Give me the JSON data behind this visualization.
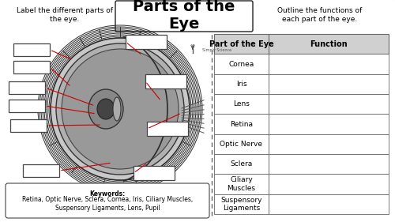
{
  "title": "Parts of the\nEye",
  "left_instruction": "Label the different parts of\nthe eye.",
  "right_instruction": "Outline the functions of\neach part of the eye.",
  "table_headers": [
    "Part of the Eye",
    "Function"
  ],
  "table_rows": [
    "Cornea",
    "Iris",
    "Lens",
    "Retina",
    "Optic Nerve",
    "Sclera",
    "Ciliary\nMuscles",
    "Suspensory\nLigaments"
  ],
  "keywords_label": "Keywords:",
  "keywords_text": "Retina, Optic Nerve, Sclera, Cornea, Iris, Ciliary Muscles,\nSuspensory Ligaments, Lens, Pupil",
  "bg_color": "#ffffff",
  "border_color": "#222222",
  "table_header_bg": "#d0d0d0",
  "table_line_color": "#666666",
  "dashed_line_color": "#666666",
  "box_color": "#ffffff",
  "box_edge_color": "#444444",
  "red_line_color": "#cc0000",
  "title_fontsize": 14,
  "body_fontsize": 6.5,
  "small_fontsize": 5.5,
  "header_fontsize": 7.0
}
